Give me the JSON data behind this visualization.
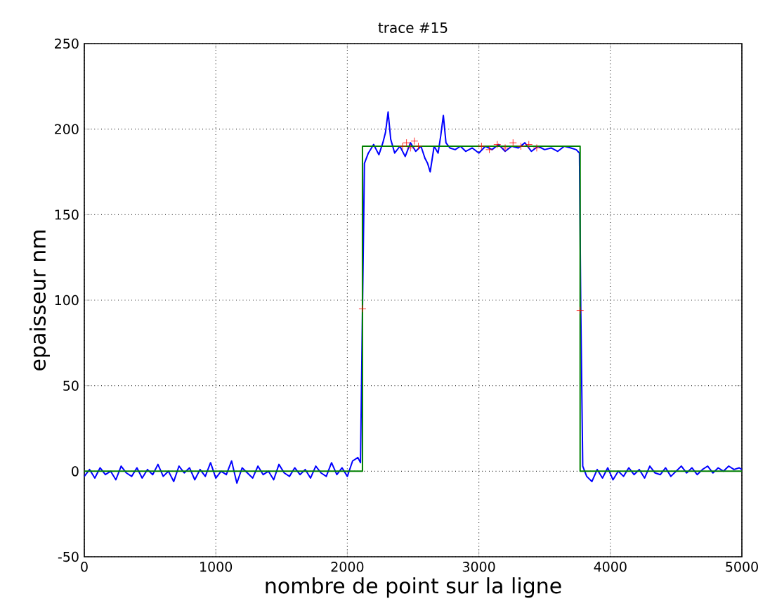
{
  "chart_data": {
    "type": "line",
    "title": "trace #15",
    "xlabel": "nombre de point sur la ligne",
    "ylabel": "epaisseur nm",
    "xlim": [
      0,
      5000
    ],
    "ylim": [
      -50,
      250
    ],
    "xticks": [
      0,
      1000,
      2000,
      3000,
      4000,
      5000
    ],
    "yticks": [
      -50,
      0,
      50,
      100,
      150,
      200,
      250
    ],
    "grid": true,
    "series": [
      {
        "color": "#0000ff",
        "marker": "none",
        "line_style": "solid",
        "x": [
          0,
          40,
          80,
          120,
          160,
          200,
          240,
          280,
          320,
          360,
          400,
          440,
          480,
          520,
          560,
          600,
          640,
          680,
          720,
          760,
          800,
          840,
          880,
          920,
          960,
          1000,
          1040,
          1080,
          1120,
          1160,
          1200,
          1240,
          1280,
          1320,
          1360,
          1400,
          1440,
          1480,
          1520,
          1560,
          1600,
          1640,
          1680,
          1720,
          1760,
          1800,
          1840,
          1880,
          1920,
          1960,
          2000,
          2040,
          2080,
          2100,
          2130,
          2160,
          2200,
          2240,
          2270,
          2290,
          2310,
          2330,
          2360,
          2400,
          2440,
          2480,
          2520,
          2560,
          2590,
          2610,
          2630,
          2660,
          2690,
          2710,
          2730,
          2750,
          2780,
          2820,
          2860,
          2900,
          2950,
          3000,
          3050,
          3100,
          3150,
          3200,
          3250,
          3300,
          3350,
          3400,
          3450,
          3500,
          3550,
          3600,
          3650,
          3700,
          3740,
          3765,
          3775,
          3790,
          3820,
          3860,
          3900,
          3940,
          3980,
          4020,
          4060,
          4100,
          4140,
          4180,
          4220,
          4260,
          4300,
          4340,
          4380,
          4420,
          4460,
          4500,
          4540,
          4580,
          4620,
          4660,
          4700,
          4740,
          4780,
          4820,
          4860,
          4900,
          4940,
          4980,
          5000
        ],
        "values": [
          -3,
          1,
          -4,
          2,
          -2,
          0,
          -5,
          3,
          -1,
          -3,
          2,
          -4,
          1,
          -2,
          4,
          -3,
          0,
          -6,
          3,
          -1,
          2,
          -5,
          1,
          -3,
          5,
          -4,
          0,
          -2,
          6,
          -7,
          2,
          -1,
          -4,
          3,
          -2,
          0,
          -5,
          4,
          -1,
          -3,
          2,
          -2,
          1,
          -4,
          3,
          -1,
          -3,
          5,
          -2,
          2,
          -3,
          6,
          8,
          5,
          180,
          186,
          191,
          185,
          192,
          198,
          210,
          194,
          186,
          190,
          184,
          192,
          187,
          190,
          183,
          180,
          175,
          190,
          186,
          196,
          208,
          192,
          189,
          188,
          190,
          187,
          189,
          186,
          190,
          188,
          191,
          187,
          190,
          189,
          192,
          187,
          190,
          188,
          189,
          187,
          190,
          189,
          188,
          186,
          95,
          3,
          -3,
          -6,
          1,
          -4,
          2,
          -5,
          0,
          -3,
          2,
          -2,
          1,
          -4,
          3,
          -1,
          -2,
          2,
          -3,
          0,
          3,
          -1,
          2,
          -2,
          1,
          3,
          -1,
          2,
          0,
          3,
          1,
          2,
          1
        ]
      },
      {
        "color": "#008000",
        "marker": "none",
        "line_style": "solid",
        "x": [
          0,
          2115,
          2115,
          3770,
          3770,
          5000
        ],
        "values": [
          0,
          0,
          190,
          190,
          0,
          0
        ]
      },
      {
        "type": "scatter",
        "color": "#ff0000",
        "marker": "cross",
        "x": [
          2115,
          2420,
          2450,
          2480,
          2510,
          2540,
          3020,
          3080,
          3140,
          3200,
          3260,
          3320,
          3380,
          3440,
          3770
        ],
        "values": [
          95,
          190,
          192,
          189,
          193,
          190,
          190,
          188,
          191,
          189,
          192,
          190,
          191,
          189,
          94
        ]
      }
    ]
  }
}
